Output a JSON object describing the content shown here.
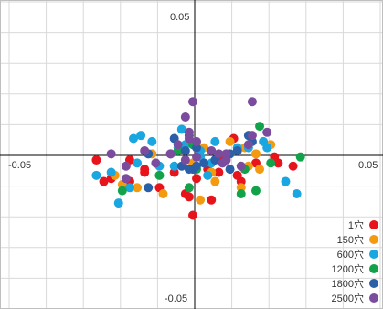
{
  "chart_data": {
    "type": "scatter",
    "title": "",
    "xlabel": "",
    "ylabel": "",
    "xlim": [
      -0.05,
      0.05
    ],
    "ylim": [
      -0.05,
      0.05
    ],
    "grid": true,
    "legend_placement": "bottom-right",
    "tick_labels": {
      "x_min": "-0.05",
      "x_max": "0.05",
      "y_max": "0.05",
      "y_min": "-0.05"
    },
    "series": [
      {
        "name": "1穴",
        "color": "#e8141c",
        "points": [
          [
            -0.0175,
            -0.0015
          ],
          [
            -0.0265,
            -0.0015
          ],
          [
            -0.0135,
            -0.0045
          ],
          [
            -0.0055,
            -0.0055
          ],
          [
            0.0035,
            -0.0045
          ],
          [
            0.0065,
            -0.0005
          ],
          [
            0.0105,
            0.0055
          ],
          [
            0.0215,
            -0.0005
          ],
          [
            0.0225,
            -0.0025
          ],
          [
            0.0115,
            -0.0065
          ],
          [
            -0.0175,
            -0.0085
          ],
          [
            -0.0095,
            -0.0105
          ],
          [
            -0.0025,
            -0.0125
          ],
          [
            0.0045,
            -0.0145
          ],
          [
            0.0125,
            -0.0085
          ],
          [
            -0.0225,
            -0.0075
          ],
          [
            -0.0015,
            -0.0135
          ],
          [
            -0.0135,
            -0.0055
          ],
          [
            0.0265,
            -0.0035
          ],
          [
            -0.0005,
            -0.0195
          ],
          [
            0.0005,
            -0.0075
          ],
          [
            0.0165,
            -0.0025
          ],
          [
            0.0065,
            -0.0055
          ],
          [
            -0.0245,
            -0.0085
          ]
        ]
      },
      {
        "name": "150穴",
        "color": "#f39a11",
        "points": [
          [
            0.0095,
            0.0045
          ],
          [
            0.0135,
            0.0025
          ],
          [
            -0.0155,
            -0.0105
          ],
          [
            -0.0215,
            -0.0065
          ],
          [
            -0.0085,
            -0.0125
          ],
          [
            0.0015,
            -0.0145
          ],
          [
            0.0145,
            -0.0035
          ],
          [
            0.0055,
            -0.0085
          ],
          [
            0.0205,
            0.0035
          ],
          [
            -0.0005,
            -0.0025
          ],
          [
            0.0125,
            -0.0105
          ],
          [
            0.0045,
            -0.0055
          ],
          [
            0.0025,
            0.0025
          ],
          [
            -0.0115,
            0.0005
          ],
          [
            0.0165,
            0.0005
          ],
          [
            0.0175,
            -0.0045
          ],
          [
            -0.0195,
            -0.0095
          ],
          [
            0.0085,
            0.0005
          ]
        ]
      },
      {
        "name": "600穴",
        "color": "#1aa7e1",
        "points": [
          [
            -0.0225,
            -0.0055
          ],
          [
            -0.0165,
            0.0055
          ],
          [
            -0.0045,
            0.0025
          ],
          [
            0.0015,
            0.0015
          ],
          [
            0.0055,
            0.0045
          ],
          [
            0.0115,
            0.0025
          ],
          [
            0.0195,
            0.0025
          ],
          [
            0.0245,
            -0.0085
          ],
          [
            -0.0175,
            -0.0105
          ],
          [
            -0.0095,
            -0.0035
          ],
          [
            -0.0055,
            -0.0035
          ],
          [
            -0.0035,
            0.0085
          ],
          [
            -0.0265,
            -0.0065
          ],
          [
            -0.0115,
            0.0045
          ],
          [
            0.0035,
            -0.0065
          ],
          [
            0.0145,
            0.0025
          ],
          [
            -0.0205,
            -0.0155
          ],
          [
            -0.0155,
            -0.0025
          ],
          [
            0.0045,
            -0.0025
          ],
          [
            0.0275,
            -0.0125
          ],
          [
            -0.0145,
            0.0065
          ],
          [
            0.0015,
            -0.0005
          ],
          [
            0.0185,
            0.0045
          ],
          [
            -0.0025,
            0.0035
          ]
        ]
      },
      {
        "name": "1200穴",
        "color": "#12a34a",
        "points": [
          [
            -0.0045,
            0.0015
          ],
          [
            0.0175,
            0.0095
          ],
          [
            0.0205,
            -0.0025
          ],
          [
            0.0285,
            -0.0005
          ],
          [
            -0.0005,
            0.0035
          ],
          [
            0.0165,
            -0.0115
          ],
          [
            -0.0015,
            -0.0105
          ],
          [
            -0.0095,
            -0.0065
          ],
          [
            -0.0195,
            -0.0115
          ],
          [
            0.0005,
            -0.0045
          ],
          [
            0.0135,
            -0.0045
          ],
          [
            0.0125,
            -0.0125
          ]
        ]
      },
      {
        "name": "1800穴",
        "color": "#2b5fa8",
        "points": [
          [
            -0.0125,
            0.0005
          ],
          [
            -0.0005,
            -0.0045
          ],
          [
            -0.0025,
            0.0015
          ],
          [
            0.0055,
            -0.0015
          ],
          [
            0.0155,
            0.0045
          ],
          [
            0.0095,
            -0.0045
          ],
          [
            -0.0065,
            0.0005
          ],
          [
            0.0005,
            -0.0035
          ],
          [
            -0.0015,
            -0.0045
          ],
          [
            0.0115,
            0.0015
          ],
          [
            0.0025,
            -0.0025
          ],
          [
            -0.0055,
            0.0055
          ],
          [
            0.0005,
            0.0025
          ],
          [
            -0.0125,
            -0.0105
          ],
          [
            0.0095,
            0.0005
          ],
          [
            0.0145,
            0.0065
          ],
          [
            -0.0035,
            -0.0035
          ],
          [
            -0.0015,
            0.0065
          ]
        ]
      },
      {
        "name": "2500穴",
        "color": "#7b4c9e",
        "points": [
          [
            -0.0005,
            0.0175
          ],
          [
            0.0155,
            0.0175
          ],
          [
            -0.0025,
            0.0125
          ],
          [
            0.0195,
            0.0075
          ],
          [
            -0.0015,
            0.0075
          ],
          [
            0.0145,
            0.0035
          ],
          [
            0.0005,
            0.0045
          ],
          [
            -0.0065,
            0.0005
          ],
          [
            0.0085,
            0.0005
          ],
          [
            -0.0025,
            -0.0015
          ],
          [
            0.0075,
            -0.0025
          ],
          [
            -0.0185,
            -0.0035
          ],
          [
            0.0045,
            0.0015
          ],
          [
            -0.0135,
            0.0015
          ],
          [
            0.0005,
            -0.0005
          ],
          [
            -0.0225,
            0.0005
          ],
          [
            -0.0105,
            -0.0025
          ],
          [
            -0.0015,
            0.0055
          ],
          [
            0.0155,
            0.0065
          ],
          [
            0.0065,
            0.0005
          ],
          [
            -0.0045,
            0.0035
          ],
          [
            0.0125,
            -0.0035
          ],
          [
            -0.0185,
            -0.0075
          ],
          [
            0.0085,
            -0.0015
          ]
        ]
      }
    ]
  }
}
